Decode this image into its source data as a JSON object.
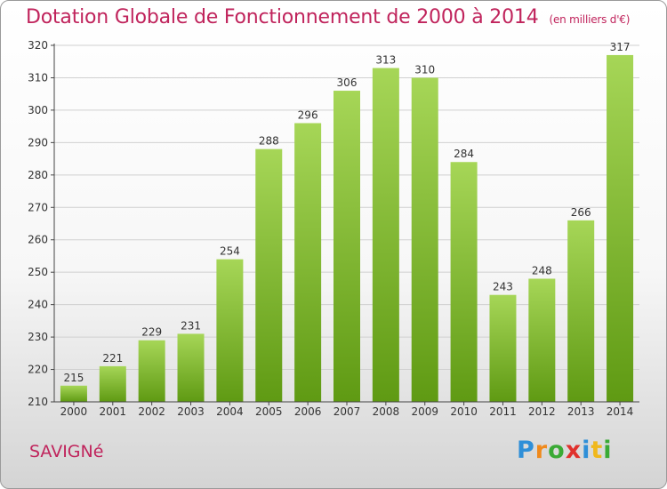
{
  "header": {
    "title": "Dotation Globale de Fonctionnement de 2000 à 2014",
    "subtitle": "(en milliers d'€)"
  },
  "footer": {
    "town": "SAVIGNé",
    "logo_text": "Proxiti"
  },
  "colors": {
    "title": "#c0245c",
    "bar_light": "#a6d657",
    "bar_dark": "#5f9a13",
    "grid": "#d0d0d0",
    "axis": "#444444"
  },
  "chart_data": {
    "type": "bar",
    "title": "Dotation Globale de Fonctionnement de 2000 à 2014",
    "subtitle": "(en milliers d'€)",
    "xlabel": "",
    "ylabel": "",
    "categories": [
      "2000",
      "2001",
      "2002",
      "2003",
      "2004",
      "2005",
      "2006",
      "2007",
      "2008",
      "2009",
      "2010",
      "2011",
      "2012",
      "2013",
      "2014"
    ],
    "values": [
      215,
      221,
      229,
      231,
      254,
      288,
      296,
      306,
      313,
      310,
      284,
      243,
      248,
      266,
      317
    ],
    "ylim": [
      210,
      320
    ],
    "yticks": [
      210,
      220,
      230,
      240,
      250,
      260,
      270,
      280,
      290,
      300,
      310,
      320
    ],
    "grid": true,
    "legend": "none",
    "data_labels": true
  }
}
